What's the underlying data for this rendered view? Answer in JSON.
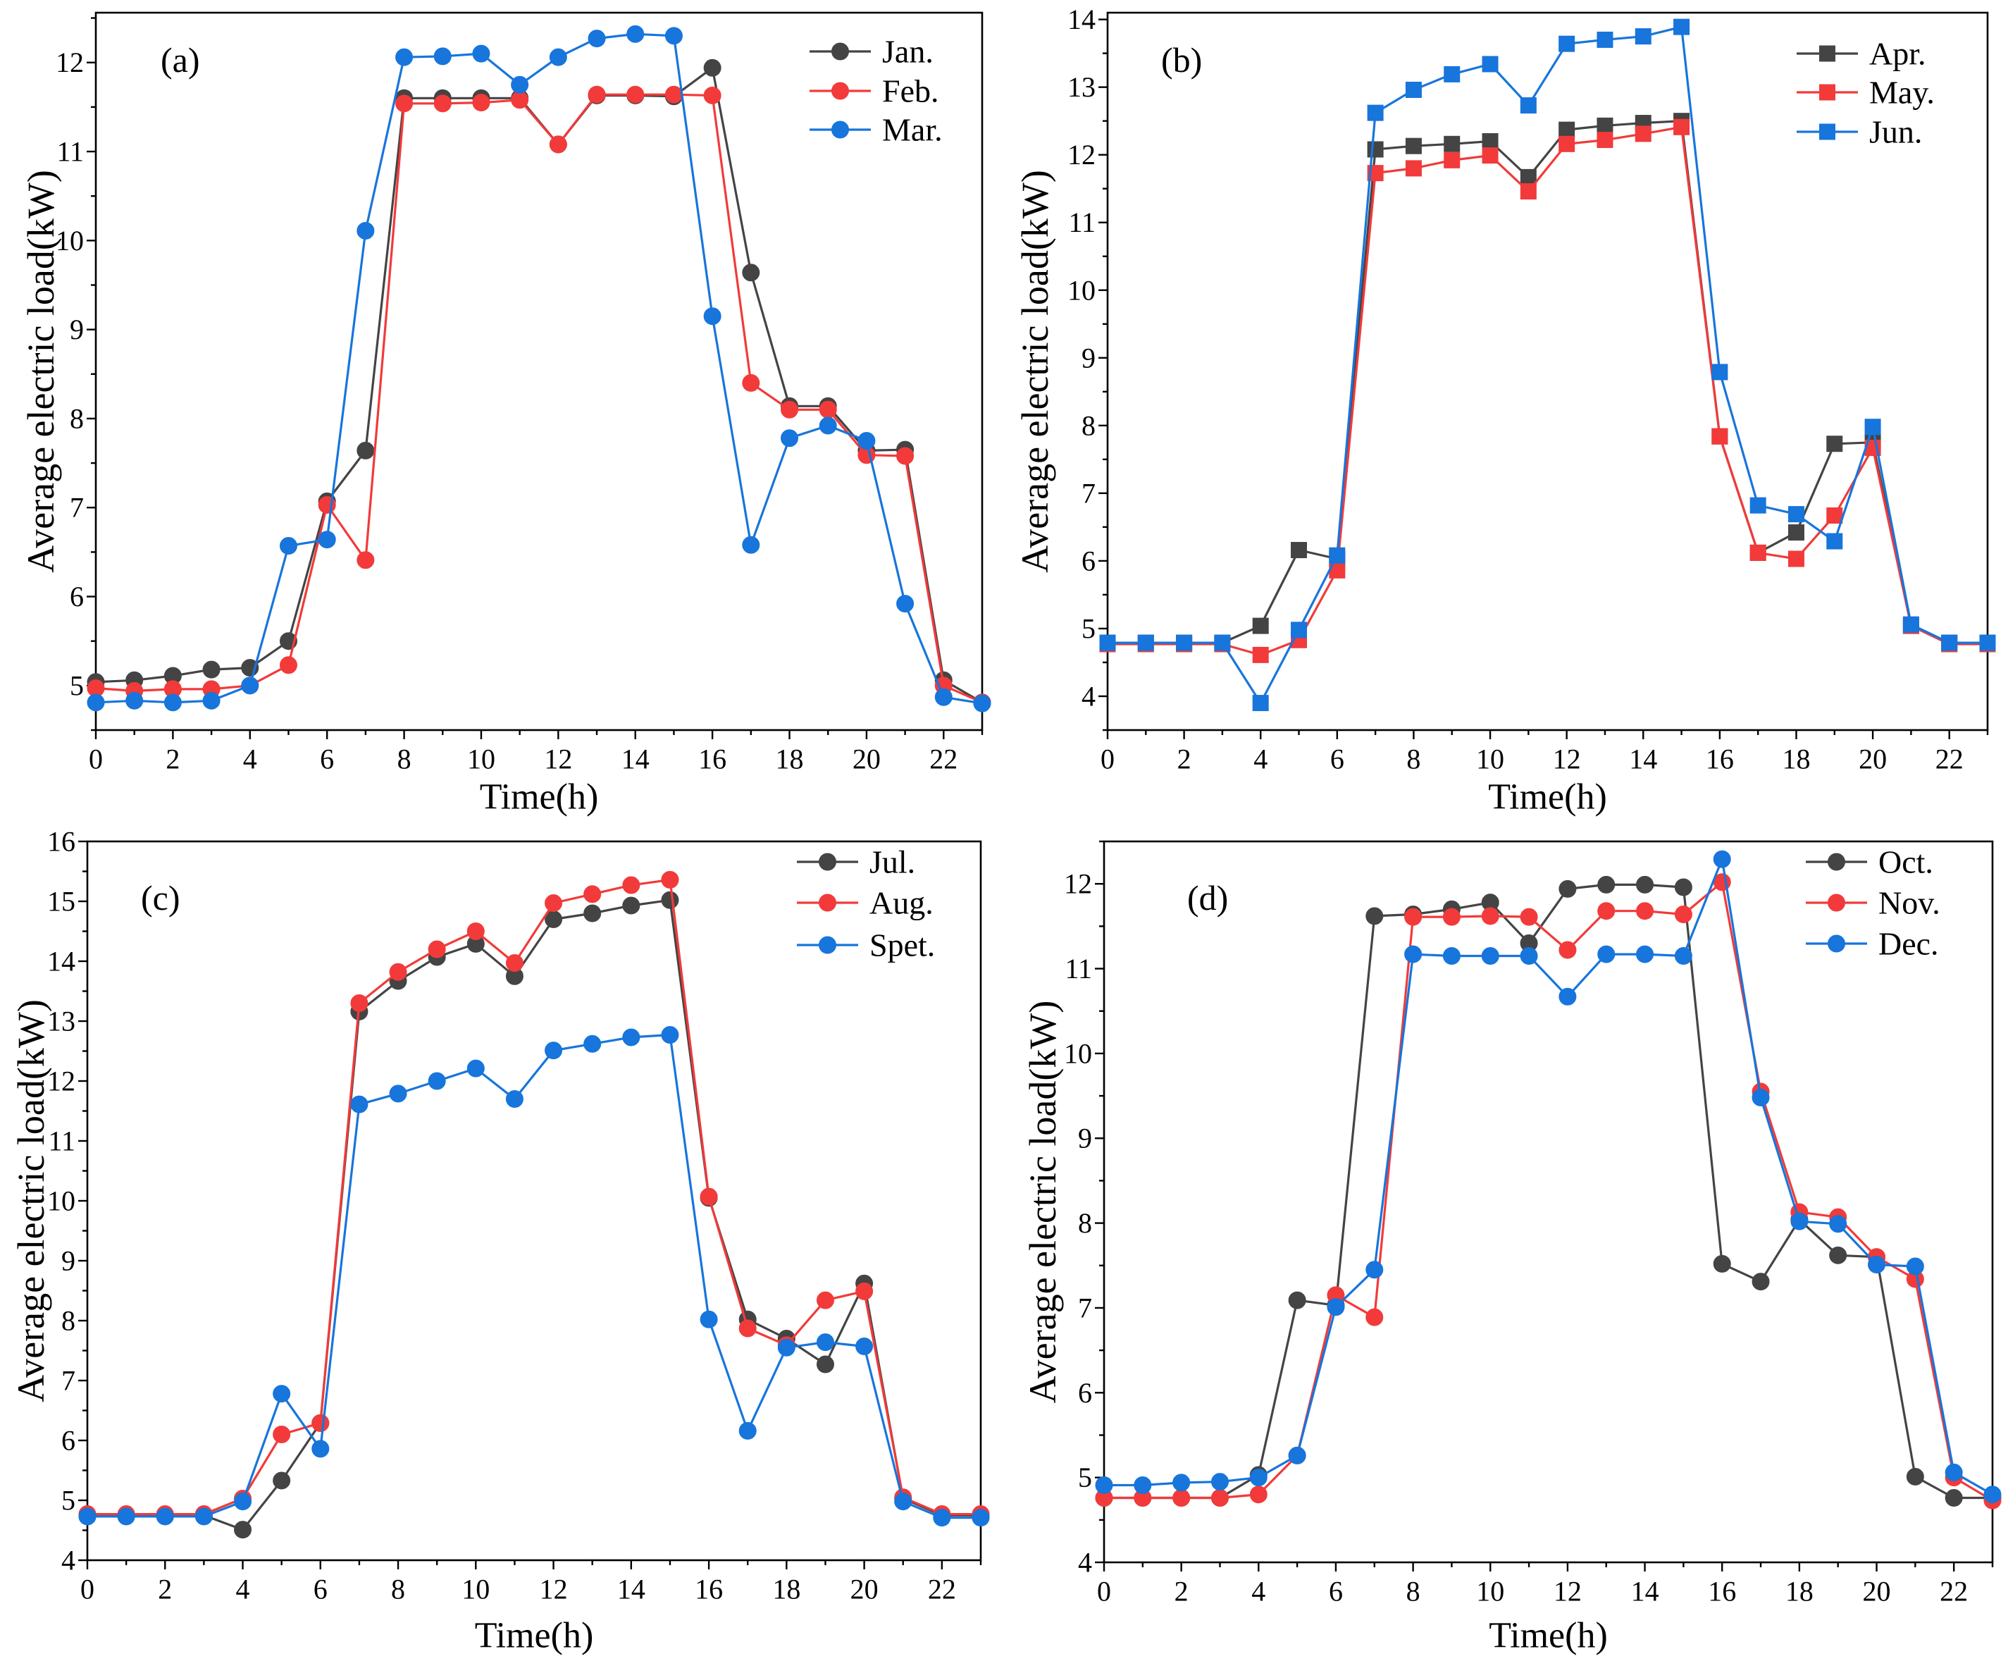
{
  "chart_data": [
    {
      "panel_label": "(a)",
      "type": "line",
      "marker": "circle",
      "xlabel": "Time(h)",
      "ylabel": "Average electric load(kW)",
      "x": [
        0,
        1,
        2,
        3,
        4,
        5,
        6,
        7,
        8,
        9,
        10,
        11,
        12,
        13,
        14,
        15,
        16,
        17,
        18,
        19,
        20,
        21,
        22,
        23
      ],
      "xlim": [
        0,
        23
      ],
      "xticks": [
        0,
        2,
        4,
        6,
        8,
        10,
        12,
        14,
        16,
        18,
        20,
        22
      ],
      "ylim": [
        4.5,
        12.56
      ],
      "yticks": [
        5,
        6,
        7,
        8,
        9,
        10,
        11,
        12
      ],
      "grid": false,
      "legend_position": "top-right",
      "series": [
        {
          "name": "Jan.",
          "color": "#444444",
          "values": [
            5.04,
            5.06,
            5.11,
            5.18,
            5.2,
            5.5,
            7.07,
            7.64,
            11.6,
            11.6,
            11.6,
            11.6,
            11.08,
            11.63,
            11.63,
            11.62,
            11.94,
            9.64,
            8.14,
            8.14,
            7.64,
            7.65,
            5.06,
            4.81
          ]
        },
        {
          "name": "Feb.",
          "color": "#f23a3a",
          "values": [
            4.97,
            4.94,
            4.96,
            4.96,
            5.0,
            5.23,
            7.03,
            6.41,
            11.54,
            11.54,
            11.55,
            11.58,
            11.08,
            11.64,
            11.64,
            11.64,
            11.63,
            8.4,
            8.1,
            8.1,
            7.59,
            7.58,
            5.0,
            4.81
          ]
        },
        {
          "name": "Mar.",
          "color": "#1775dc",
          "values": [
            4.81,
            4.83,
            4.81,
            4.83,
            5.0,
            6.57,
            6.64,
            10.11,
            12.06,
            12.07,
            12.1,
            11.75,
            12.06,
            12.27,
            12.32,
            12.3,
            9.15,
            6.58,
            7.78,
            7.92,
            7.75,
            5.92,
            4.87,
            4.8
          ]
        }
      ]
    },
    {
      "panel_label": "(b)",
      "type": "line",
      "marker": "square",
      "xlabel": "Time(h)",
      "ylabel": "Average electric load(kW)",
      "x": [
        0,
        1,
        2,
        3,
        4,
        5,
        6,
        7,
        8,
        9,
        10,
        11,
        12,
        13,
        14,
        15,
        16,
        17,
        18,
        19,
        20,
        21,
        22,
        23
      ],
      "xlim": [
        0,
        23
      ],
      "xticks": [
        0,
        2,
        4,
        6,
        8,
        10,
        12,
        14,
        16,
        18,
        20,
        22
      ],
      "ylim": [
        3.5,
        14.1
      ],
      "yticks": [
        4,
        5,
        6,
        7,
        8,
        9,
        10,
        11,
        12,
        13,
        14
      ],
      "grid": false,
      "legend_position": "top-right",
      "series": [
        {
          "name": "Apr.",
          "color": "#444444",
          "values": [
            4.79,
            4.79,
            4.79,
            4.79,
            5.04,
            6.16,
            6.03,
            12.08,
            12.13,
            12.16,
            12.2,
            11.67,
            12.37,
            12.43,
            12.47,
            12.5,
            7.84,
            6.12,
            6.42,
            7.73,
            7.75,
            5.04,
            4.79,
            4.79
          ]
        },
        {
          "name": "May.",
          "color": "#f23a3a",
          "values": [
            4.77,
            4.77,
            4.77,
            4.77,
            4.61,
            4.83,
            5.86,
            11.73,
            11.8,
            11.92,
            11.99,
            11.46,
            12.16,
            12.22,
            12.31,
            12.41,
            7.84,
            6.12,
            6.03,
            6.67,
            7.67,
            5.04,
            4.77,
            4.77
          ]
        },
        {
          "name": "Jun.",
          "color": "#1775dc",
          "values": [
            4.79,
            4.79,
            4.79,
            4.79,
            3.9,
            4.98,
            6.08,
            12.62,
            12.96,
            13.19,
            13.34,
            12.73,
            13.64,
            13.7,
            13.75,
            13.89,
            8.79,
            6.82,
            6.69,
            6.29,
            7.98,
            5.06,
            4.79,
            4.79
          ]
        }
      ]
    },
    {
      "panel_label": "(c)",
      "type": "line",
      "marker": "circle",
      "xlabel": "Time(h)",
      "ylabel": "Average electric load(kW)",
      "x": [
        0,
        1,
        2,
        3,
        4,
        5,
        6,
        7,
        8,
        9,
        10,
        11,
        12,
        13,
        14,
        15,
        16,
        17,
        18,
        19,
        20,
        21,
        22,
        23
      ],
      "xlim": [
        0,
        23
      ],
      "xticks": [
        0,
        2,
        4,
        6,
        8,
        10,
        12,
        14,
        16,
        18,
        20,
        22
      ],
      "ylim": [
        4,
        16
      ],
      "yticks": [
        4,
        5,
        6,
        7,
        8,
        9,
        10,
        11,
        12,
        13,
        14,
        15,
        16
      ],
      "grid": false,
      "legend_position": "top-right",
      "series": [
        {
          "name": "Jul.",
          "color": "#444444",
          "values": [
            4.75,
            4.75,
            4.75,
            4.75,
            4.51,
            5.33,
            6.29,
            13.16,
            13.67,
            14.07,
            14.29,
            13.75,
            14.7,
            14.8,
            14.93,
            15.02,
            10.05,
            8.02,
            7.7,
            7.27,
            8.62,
            5.03,
            4.75,
            4.75
          ]
        },
        {
          "name": "Aug.",
          "color": "#f23a3a",
          "values": [
            4.77,
            4.77,
            4.77,
            4.77,
            5.03,
            6.1,
            6.29,
            13.3,
            13.82,
            14.2,
            14.5,
            13.97,
            14.97,
            15.12,
            15.27,
            15.36,
            10.07,
            7.87,
            7.59,
            8.34,
            8.49,
            5.05,
            4.77,
            4.77
          ]
        },
        {
          "name": "Spet.",
          "color": "#1775dc",
          "values": [
            4.73,
            4.73,
            4.73,
            4.73,
            4.98,
            6.78,
            5.86,
            11.61,
            11.79,
            12.0,
            12.21,
            11.7,
            12.51,
            12.62,
            12.73,
            12.77,
            8.02,
            6.16,
            7.55,
            7.64,
            7.57,
            4.98,
            4.71,
            4.71
          ]
        }
      ]
    },
    {
      "panel_label": "(d)",
      "type": "line",
      "marker": "circle",
      "xlabel": "Time(h)",
      "ylabel": "Average electric load(kW)",
      "x": [
        0,
        1,
        2,
        3,
        4,
        5,
        6,
        7,
        8,
        9,
        10,
        11,
        12,
        13,
        14,
        15,
        16,
        17,
        18,
        19,
        20,
        21,
        22,
        23
      ],
      "xlim": [
        0,
        23
      ],
      "xticks": [
        0,
        2,
        4,
        6,
        8,
        10,
        12,
        14,
        16,
        18,
        20,
        22
      ],
      "ylim": [
        4,
        12.5
      ],
      "yticks": [
        4,
        5,
        6,
        7,
        8,
        9,
        10,
        11,
        12
      ],
      "grid": false,
      "legend_position": "top-right",
      "series": [
        {
          "name": "Oct.",
          "color": "#444444",
          "values": [
            4.76,
            4.76,
            4.76,
            4.76,
            5.03,
            7.09,
            7.03,
            11.62,
            11.64,
            11.7,
            11.78,
            11.3,
            11.94,
            11.99,
            11.99,
            11.96,
            7.52,
            7.31,
            8.04,
            7.62,
            7.6,
            5.01,
            4.76,
            4.76
          ]
        },
        {
          "name": "Nov.",
          "color": "#f23a3a",
          "values": [
            4.76,
            4.76,
            4.76,
            4.76,
            4.8,
            5.26,
            7.15,
            6.89,
            11.61,
            11.61,
            11.62,
            11.61,
            11.22,
            11.68,
            11.68,
            11.64,
            12.02,
            9.55,
            8.13,
            8.07,
            7.6,
            7.34,
            5.0,
            4.73
          ]
        },
        {
          "name": "Dec.",
          "color": "#1775dc",
          "values": [
            4.91,
            4.91,
            4.94,
            4.95,
            5.0,
            5.26,
            7.01,
            7.45,
            11.17,
            11.15,
            11.15,
            11.15,
            10.67,
            11.17,
            11.17,
            11.15,
            12.29,
            9.48,
            8.02,
            7.99,
            7.51,
            7.49,
            5.06,
            4.8
          ]
        }
      ]
    }
  ]
}
